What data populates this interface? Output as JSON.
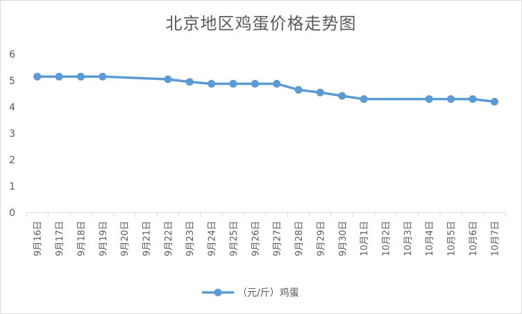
{
  "chart_data": {
    "type": "line",
    "title": "北京地区鸡蛋价格走势图",
    "xlabel": "",
    "ylabel": "",
    "ylim": [
      0,
      6
    ],
    "yticks": [
      0,
      1,
      2,
      3,
      4,
      5,
      6
    ],
    "grid": false,
    "legend_position": "bottom",
    "categories": [
      "9月16日",
      "9月17日",
      "9月18日",
      "9月19日",
      "9月20日",
      "9月21日",
      "9月22日",
      "9月23日",
      "9月24日",
      "9月25日",
      "9月26日",
      "9月27日",
      "9月28日",
      "9月29日",
      "9月30日",
      "10月1日",
      "10月2日",
      "10月3日",
      "10月4日",
      "10月5日",
      "10月6日",
      "10月7日"
    ],
    "series": [
      {
        "name": "（元/斤）鸡蛋",
        "color": "#5b9bd5",
        "values": [
          5.15,
          5.15,
          5.15,
          5.15,
          null,
          null,
          5.05,
          4.95,
          4.88,
          4.88,
          4.88,
          4.88,
          4.65,
          4.55,
          4.42,
          4.3,
          null,
          null,
          4.3,
          4.3,
          4.3,
          4.2
        ]
      }
    ]
  }
}
